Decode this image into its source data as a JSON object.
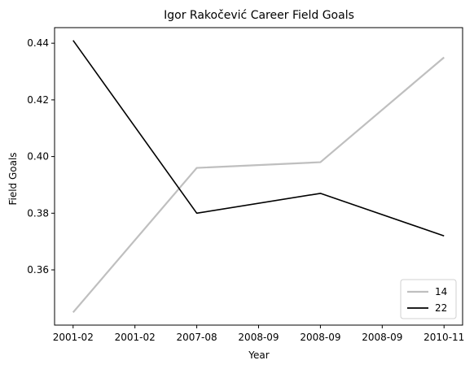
{
  "chart_data": {
    "type": "line",
    "title": "Igor Rakočević Career Field Goals",
    "xlabel": "Year",
    "ylabel": "Field Goals",
    "x_tick_labels": [
      "2001-02",
      "2001-02",
      "2007-08",
      "2008-09",
      "2008-09",
      "2008-09",
      "2010-11"
    ],
    "x_positions": [
      0,
      2,
      4,
      6
    ],
    "ylim": [
      0.3405,
      0.4455
    ],
    "yticks": [
      0.36,
      0.38,
      0.4,
      0.42,
      0.44
    ],
    "y_tick_labels": [
      "0.36",
      "0.38",
      "0.40",
      "0.42",
      "0.44"
    ],
    "grid": false,
    "legend_position": "lower-right",
    "series": [
      {
        "name": "14",
        "color": "#bfbfbf",
        "values": [
          0.345,
          0.396,
          0.398,
          0.435
        ]
      },
      {
        "name": "22",
        "color": "#000000",
        "values": [
          0.441,
          0.38,
          0.387,
          0.372
        ]
      }
    ]
  }
}
